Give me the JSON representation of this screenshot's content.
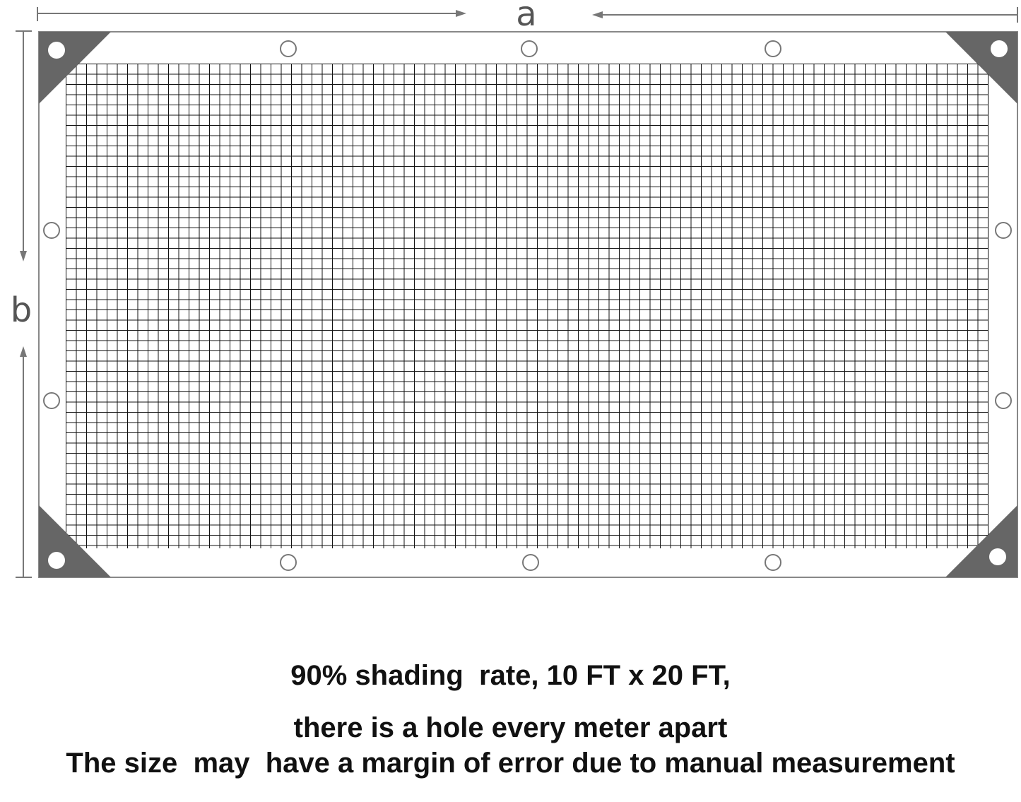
{
  "dimensions": {
    "width_label": "a",
    "height_label": "b"
  },
  "colors": {
    "corner": "#666666",
    "grid": "#111111",
    "border": "#888888",
    "dimension_line": "#777777"
  },
  "grommets": {
    "top": 3,
    "bottom": 3,
    "left": 2,
    "right": 2,
    "corners": 4
  },
  "caption": {
    "line1": "90% shading  rate, 10 FT x 20 FT,",
    "line2": "there is a hole every meter apart",
    "line3": "The size  may  have a margin of error due to manual measurement"
  }
}
